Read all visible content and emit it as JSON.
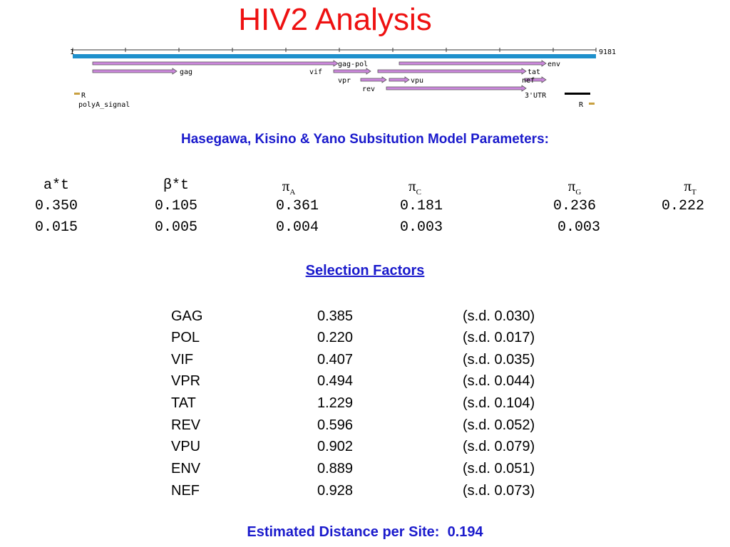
{
  "title": "HIV2 Analysis",
  "genome_map": {
    "start_label": "1",
    "end_label": "9181",
    "genes": {
      "gag_pol": "gag-pol",
      "env": "env",
      "gag": "gag",
      "vif": "vif",
      "tat": "tat",
      "vpr": "vpr",
      "vpu": "vpu",
      "nef": "nef",
      "rev": "rev",
      "utr3": "3'UTR",
      "r_left": "R",
      "r_right": "R",
      "polya": "polyA_signal"
    },
    "colors": {
      "genome_bar": "#1e90cc",
      "gene_arrow": "#cc88dd",
      "gene_outline": "#555555",
      "r_marker": "#c8a040"
    }
  },
  "model": {
    "heading": "Hasegawa, Kisino & Yano Subsitution Model Parameters:",
    "headers": {
      "a_t": "a*t",
      "b_t": "β*t",
      "pi_a": "π",
      "pi_a_sub": "A",
      "pi_c": "π",
      "pi_c_sub": "C",
      "pi_g": "π",
      "pi_g_sub": "G",
      "pi_t": "π",
      "pi_t_sub": "T"
    },
    "estimates": {
      "a_t": "0.350",
      "b_t": "0.105",
      "pi_a": "0.361",
      "pi_c": "0.181",
      "pi_g": "0.236",
      "pi_t": "0.222"
    },
    "errors": {
      "a_t": "0.015",
      "b_t": "0.005",
      "pi_a": "0.004",
      "pi_c": "0.003",
      "pi_g": "0.003"
    }
  },
  "selection": {
    "heading": "Selection Factors",
    "rows": [
      {
        "gene": "GAG",
        "value": "0.385",
        "sd": "(s.d.  0.030)"
      },
      {
        "gene": "POL",
        "value": "0.220",
        "sd": "(s.d.  0.017)"
      },
      {
        "gene": "VIF",
        "value": "0.407",
        "sd": "(s.d.  0.035)"
      },
      {
        "gene": "VPR",
        "value": "0.494",
        "sd": "(s.d.  0.044)"
      },
      {
        "gene": "TAT",
        "value": "1.229",
        "sd": "(s.d.  0.104)"
      },
      {
        "gene": "REV",
        "value": "0.596",
        "sd": "(s.d.  0.052)"
      },
      {
        "gene": "VPU",
        "value": "0.902",
        "sd": "(s.d.  0.079)"
      },
      {
        "gene": "ENV",
        "value": "0.889",
        "sd": "(s.d.  0.051)"
      },
      {
        "gene": "NEF",
        "value": "0.928",
        "sd": "(s.d.  0.073)"
      }
    ]
  },
  "distance": "Estimated Distance per Site:  0.194"
}
